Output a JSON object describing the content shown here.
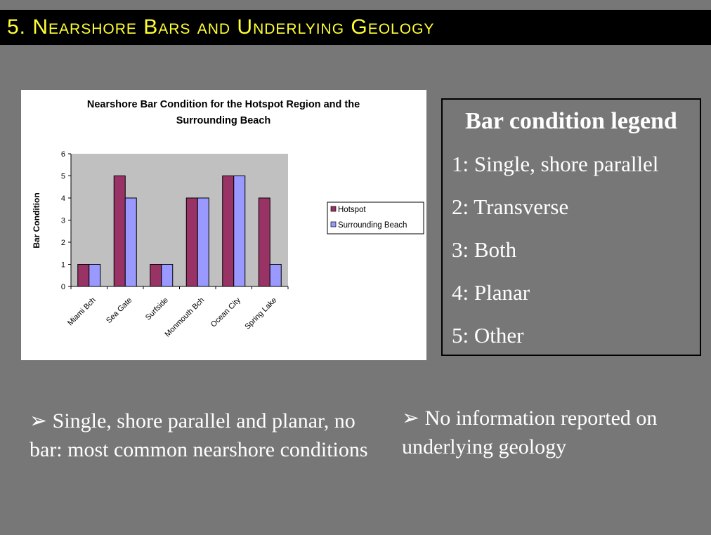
{
  "slide": {
    "title": "5. Nearshore Bars and Underlying Geology",
    "legend_panel": {
      "heading": "Bar condition legend",
      "items": [
        "1: Single, shore parallel",
        "2: Transverse",
        "3: Both",
        "4: Planar",
        "5: Other"
      ]
    },
    "bullets": [
      "➢ Single, shore parallel and planar, no bar: most common nearshore conditions",
      "➢ No information reported on underlying geology"
    ]
  },
  "chart_data": {
    "type": "bar",
    "title": "Nearshore Bar Condition for the Hotspot Region and the Surrounding Beach",
    "xlabel": "",
    "ylabel": "Bar Condition",
    "ylim": [
      0,
      6
    ],
    "yticks": [
      "0",
      "1",
      "2",
      "3",
      "4",
      "5",
      "6"
    ],
    "categories": [
      "Miami Bch",
      "Sea Gate",
      "Surfside",
      "Monmouth Bch",
      "Ocean City",
      "Spring Lake"
    ],
    "series": [
      {
        "name": "Hotspot",
        "values": [
          1,
          5,
          1,
          4,
          5,
          4
        ],
        "color": "#993366"
      },
      {
        "name": "Surrounding Beach",
        "values": [
          1,
          4,
          1,
          4,
          5,
          1
        ],
        "color": "#9999ff"
      }
    ],
    "plot_background": "#c0c0c0",
    "grid": false,
    "legend_position": "right"
  }
}
